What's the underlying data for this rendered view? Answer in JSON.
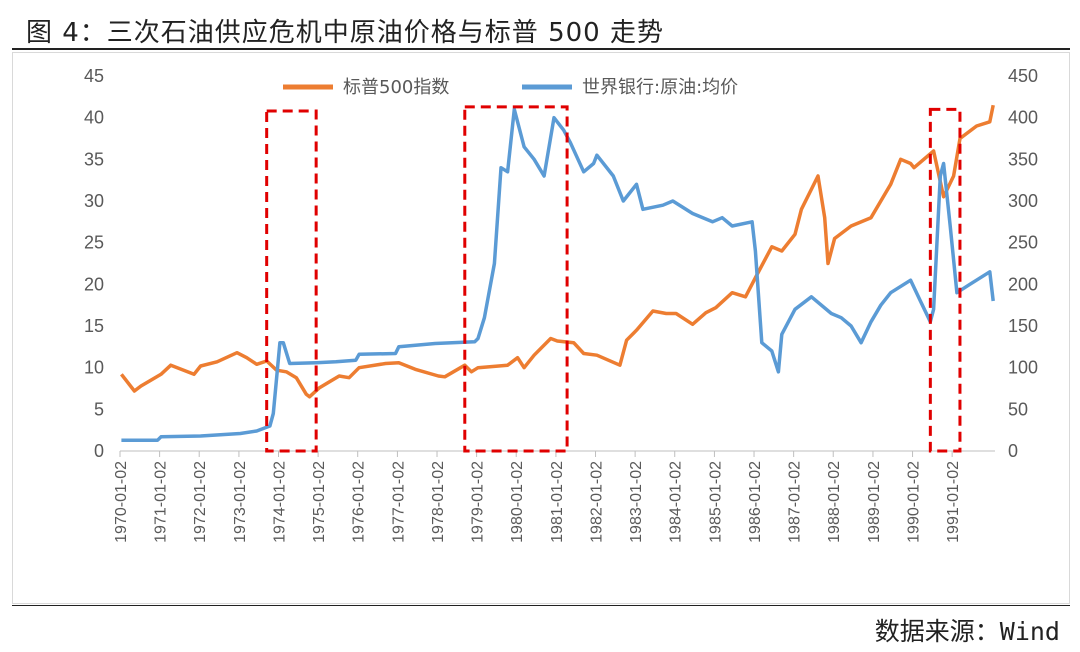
{
  "header": {
    "title": "图 4：三次石油供应危机中原油价格与标普 500 走势"
  },
  "footer": {
    "source": "数据来源：Wind"
  },
  "colors": {
    "sp500": "#ED7D31",
    "oil": "#5B9BD5",
    "highlight": "#E00000"
  },
  "chart_data": {
    "type": "line",
    "title": "",
    "xlabel": "",
    "ylabel_left": "",
    "ylabel_right": "",
    "ylim_left": [
      0,
      45
    ],
    "ylim_right": [
      0,
      450
    ],
    "yticks_left": [
      "0",
      "5",
      "10",
      "15",
      "20",
      "25",
      "30",
      "35",
      "40",
      "45"
    ],
    "yticks_right": [
      "0",
      "50",
      "100",
      "150",
      "200",
      "250",
      "300",
      "350",
      "400",
      "450"
    ],
    "x_tick_labels": [
      "1970-01-02",
      "1971-01-02",
      "1972-01-02",
      "1973-01-02",
      "1974-01-02",
      "1975-01-02",
      "1976-01-02",
      "1977-01-02",
      "1978-01-02",
      "1979-01-02",
      "1980-01-02",
      "1981-01-02",
      "1982-01-02",
      "1983-01-02",
      "1984-01-02",
      "1985-01-02",
      "1986-01-02",
      "1987-01-02",
      "1988-01-02",
      "1989-01-02",
      "1990-01-02",
      "1991-01-02"
    ],
    "xlim": [
      "1970-01-02",
      "1992-02-01"
    ],
    "grid": false,
    "legend_position": "top",
    "series": [
      {
        "name": "标普500指数",
        "axis": "right",
        "x": [
          "1970-01",
          "1970-05",
          "1970-07",
          "1971-01",
          "1971-04",
          "1971-11",
          "1972-01",
          "1972-06",
          "1972-12",
          "1973-03",
          "1973-06",
          "1973-09",
          "1973-12",
          "1974-03",
          "1974-06",
          "1974-09",
          "1974-10",
          "1975-01",
          "1975-07",
          "1975-10",
          "1976-01",
          "1976-09",
          "1977-01",
          "1977-06",
          "1978-01",
          "1978-03",
          "1978-09",
          "1978-11",
          "1979-01",
          "1979-10",
          "1980-01",
          "1980-03",
          "1980-06",
          "1980-11",
          "1981-01",
          "1981-06",
          "1981-09",
          "1982-01",
          "1982-08",
          "1982-10",
          "1983-01",
          "1983-06",
          "1983-10",
          "1984-01",
          "1984-06",
          "1984-10",
          "1985-01",
          "1985-06",
          "1985-10",
          "1986-01",
          "1986-06",
          "1986-09",
          "1987-01",
          "1987-03",
          "1987-08",
          "1987-10",
          "1987-11",
          "1988-01",
          "1988-06",
          "1988-12",
          "1989-06",
          "1989-09",
          "1989-12",
          "1990-01",
          "1990-07",
          "1990-10",
          "1991-01",
          "1991-03",
          "1991-08",
          "1991-12",
          "1992-01"
        ],
        "values": [
          92,
          72,
          78,
          92,
          103,
          92,
          102,
          107,
          118,
          112,
          104,
          108,
          97,
          95,
          88,
          68,
          65,
          76,
          90,
          88,
          100,
          105,
          106,
          98,
          90,
          89,
          103,
          95,
          100,
          103,
          112,
          100,
          115,
          135,
          132,
          130,
          117,
          115,
          103,
          133,
          145,
          168,
          165,
          165,
          152,
          166,
          172,
          190,
          185,
          208,
          245,
          240,
          260,
          290,
          330,
          280,
          225,
          255,
          270,
          280,
          320,
          350,
          345,
          340,
          360,
          305,
          330,
          375,
          390,
          395,
          415
        ]
      },
      {
        "name": "世界银行:原油:均价",
        "axis": "left",
        "x": [
          "1970-01",
          "1970-12",
          "1971-01",
          "1972-01",
          "1973-01",
          "1973-06",
          "1973-10",
          "1973-11",
          "1974-01",
          "1974-02",
          "1974-04",
          "1974-12",
          "1975-06",
          "1975-12",
          "1976-01",
          "1976-12",
          "1977-01",
          "1977-12",
          "1978-12",
          "1979-01",
          "1979-03",
          "1979-06",
          "1979-08",
          "1979-10",
          "1979-12",
          "1980-03",
          "1980-06",
          "1980-09",
          "1980-12",
          "1981-03",
          "1981-05",
          "1981-09",
          "1981-12",
          "1982-01",
          "1982-06",
          "1982-09",
          "1983-01",
          "1983-03",
          "1983-09",
          "1983-12",
          "1984-06",
          "1984-12",
          "1985-03",
          "1985-06",
          "1985-12",
          "1986-01",
          "1986-03",
          "1986-06",
          "1986-08",
          "1986-09",
          "1987-01",
          "1987-06",
          "1987-12",
          "1988-03",
          "1988-06",
          "1988-09",
          "1988-12",
          "1989-03",
          "1989-06",
          "1989-12",
          "1990-03",
          "1990-06",
          "1990-07",
          "1990-09",
          "1990-10",
          "1990-12",
          "1991-02",
          "1991-06",
          "1991-12",
          "1992-01"
        ],
        "values": [
          1.3,
          1.3,
          1.7,
          1.8,
          2.1,
          2.4,
          3.0,
          4.5,
          13.0,
          13.0,
          10.5,
          10.6,
          10.7,
          10.9,
          11.6,
          11.7,
          12.5,
          12.9,
          13.1,
          13.5,
          16.0,
          22.5,
          34.0,
          33.5,
          41.0,
          36.5,
          35.0,
          33.0,
          40.0,
          38.5,
          37.0,
          33.5,
          34.5,
          35.5,
          33.0,
          30.0,
          32.0,
          29.0,
          29.5,
          30.0,
          28.5,
          27.5,
          28.0,
          27.0,
          27.5,
          24.0,
          13.0,
          12.0,
          9.5,
          14.0,
          17.0,
          18.5,
          16.5,
          16.0,
          15.0,
          13.0,
          15.5,
          17.5,
          19.0,
          20.5,
          18.0,
          15.5,
          17.0,
          33.0,
          34.5,
          27.0,
          19.0,
          20.0,
          21.5,
          18.0
        ]
      }
    ],
    "highlight_regions": [
      {
        "start": "1973-09",
        "end": "1974-12",
        "ylow": 0,
        "yhigh": 40.8
      },
      {
        "start": "1978-09",
        "end": "1981-04",
        "ylow": 0,
        "yhigh": 41.3
      },
      {
        "start": "1990-06",
        "end": "1991-03",
        "ylow": 0,
        "yhigh": 41.0
      }
    ]
  }
}
